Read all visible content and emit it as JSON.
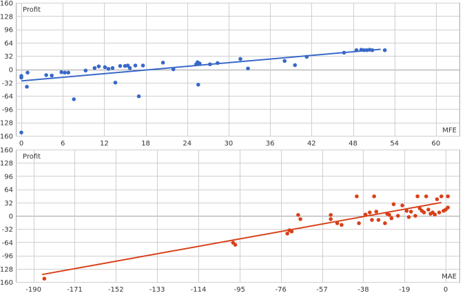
{
  "chart_data": [
    {
      "type": "scatter",
      "ylabel": "Profit",
      "xlabel": "MFE",
      "color": "#3868c8",
      "xlim": [
        0,
        64
      ],
      "ylim": [
        -160,
        160
      ],
      "x_ticks": [
        "0",
        "6",
        "12",
        "18",
        "24",
        "30",
        "36",
        "42",
        "48",
        "54",
        "60"
      ],
      "y_ticks": [
        "160",
        "128",
        "96",
        "64",
        "32",
        "0",
        "-32",
        "-64",
        "-96",
        "-128",
        "-160"
      ],
      "trendline": [
        [
          0,
          -28
        ],
        [
          52,
          48
        ]
      ],
      "points": [
        [
          0,
          -152
        ],
        [
          0,
          -20
        ],
        [
          0,
          -16
        ],
        [
          0.8,
          -42
        ],
        [
          0.9,
          -8
        ],
        [
          3.6,
          -14
        ],
        [
          4.4,
          -15
        ],
        [
          5.8,
          -7
        ],
        [
          6.3,
          -8
        ],
        [
          6.8,
          -8
        ],
        [
          7.6,
          -72
        ],
        [
          9.3,
          -3
        ],
        [
          10.6,
          3
        ],
        [
          11.2,
          7
        ],
        [
          12.1,
          5
        ],
        [
          12.6,
          1
        ],
        [
          13.2,
          3
        ],
        [
          13.6,
          -32
        ],
        [
          14.3,
          8
        ],
        [
          15.0,
          8
        ],
        [
          15.4,
          9
        ],
        [
          15.7,
          3
        ],
        [
          16.5,
          9
        ],
        [
          17.0,
          -65
        ],
        [
          17.6,
          9
        ],
        [
          20.5,
          16
        ],
        [
          22.0,
          0
        ],
        [
          25.3,
          12
        ],
        [
          25.5,
          17
        ],
        [
          25.6,
          -37
        ],
        [
          25.8,
          14
        ],
        [
          27.3,
          12
        ],
        [
          28.4,
          15
        ],
        [
          31.7,
          25
        ],
        [
          32.8,
          2
        ],
        [
          38.1,
          20
        ],
        [
          39.6,
          10
        ],
        [
          41.3,
          30
        ],
        [
          46.7,
          40
        ],
        [
          48.5,
          46
        ],
        [
          49.2,
          47
        ],
        [
          49.6,
          46
        ],
        [
          50.0,
          46
        ],
        [
          50.4,
          47
        ],
        [
          50.8,
          46
        ],
        [
          52.6,
          46
        ]
      ]
    },
    {
      "type": "scatter",
      "ylabel": "Profit",
      "xlabel": "MAE",
      "color": "#d84018",
      "xlim": [
        -194,
        6
      ],
      "ylim": [
        -160,
        160
      ],
      "x_ticks": [
        "-190",
        "-171",
        "-152",
        "-133",
        "-114",
        "-95",
        "-76",
        "-57",
        "-38",
        "-19",
        "0"
      ],
      "y_ticks": [
        "160",
        "128",
        "96",
        "64",
        "32",
        "0",
        "-32",
        "-64",
        "-96",
        "-128",
        "-160"
      ],
      "trendline": [
        [
          -186,
          -142
        ],
        [
          -2,
          32
        ]
      ],
      "points": [
        [
          -185,
          -152
        ],
        [
          -98,
          -65
        ],
        [
          -97,
          -70
        ],
        [
          -73,
          -43
        ],
        [
          -72,
          -35
        ],
        [
          -71,
          -38
        ],
        [
          -68,
          2
        ],
        [
          -67,
          -8
        ],
        [
          -53,
          2
        ],
        [
          -53,
          -8
        ],
        [
          -50,
          -18
        ],
        [
          -48,
          -22
        ],
        [
          -41,
          47
        ],
        [
          -40,
          -18
        ],
        [
          -37,
          3
        ],
        [
          -35,
          8
        ],
        [
          -34,
          -10
        ],
        [
          -33,
          47
        ],
        [
          -32,
          10
        ],
        [
          -31,
          -10
        ],
        [
          -28,
          -18
        ],
        [
          -27,
          5
        ],
        [
          -26,
          2
        ],
        [
          -25,
          -6
        ],
        [
          -24,
          28
        ],
        [
          -22,
          0
        ],
        [
          -20,
          25
        ],
        [
          -18,
          12
        ],
        [
          -17,
          -3
        ],
        [
          -16,
          10
        ],
        [
          -14,
          0
        ],
        [
          -13,
          47
        ],
        [
          -12,
          18
        ],
        [
          -11,
          12
        ],
        [
          -10,
          8
        ],
        [
          -9,
          47
        ],
        [
          -8,
          15
        ],
        [
          -7,
          5
        ],
        [
          -6,
          8
        ],
        [
          -5,
          3
        ],
        [
          -4,
          40
        ],
        [
          -3,
          8
        ],
        [
          -2,
          47
        ],
        [
          -1,
          12
        ],
        [
          0,
          15
        ],
        [
          1,
          20
        ],
        [
          1,
          47
        ]
      ]
    }
  ]
}
